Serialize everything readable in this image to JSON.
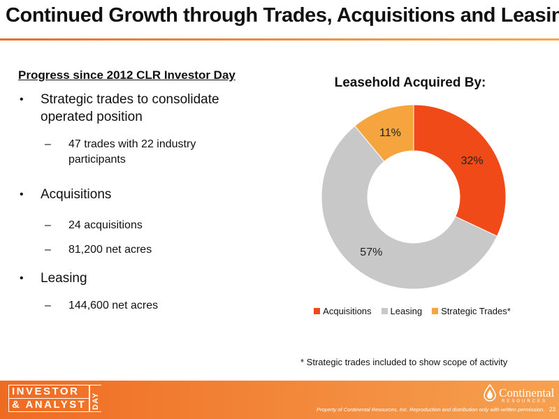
{
  "slide": {
    "title": "Continued Growth through Trades, Acquisitions and Leasing",
    "subheading": "Progress since 2012 CLR Investor Day",
    "bullets": [
      {
        "text": "Strategic trades to consolidate operated position",
        "subs": [
          "47 trades with 22 industry participants"
        ]
      },
      {
        "text": "Acquisitions",
        "subs": [
          "24 acquisitions",
          "81,200 net acres"
        ]
      },
      {
        "text": "Leasing",
        "subs": [
          "144,600 net acres"
        ]
      }
    ],
    "footnote": "* Strategic trades included to show scope of activity"
  },
  "chart_data": {
    "type": "pie",
    "title": "Leasehold Acquired By:",
    "categories": [
      "Acquisitions",
      "Leasing",
      "Strategic Trades*"
    ],
    "values": [
      32,
      57,
      11
    ],
    "labels": [
      "32%",
      "57%",
      "11%"
    ],
    "colors": [
      "#f04a19",
      "#c8c8c8",
      "#f6a43e"
    ],
    "legend_position": "bottom",
    "donut": true
  },
  "footer": {
    "logo_line1": "INVESTOR",
    "logo_line2": "& ANALYST",
    "logo_day": "DAY",
    "company": "Continental",
    "company_sub": "RESOURCES",
    "disclaimer": "Property of Continental Resources, Inc. Reproduction and distribution only with written permission.",
    "page_number": "23"
  }
}
